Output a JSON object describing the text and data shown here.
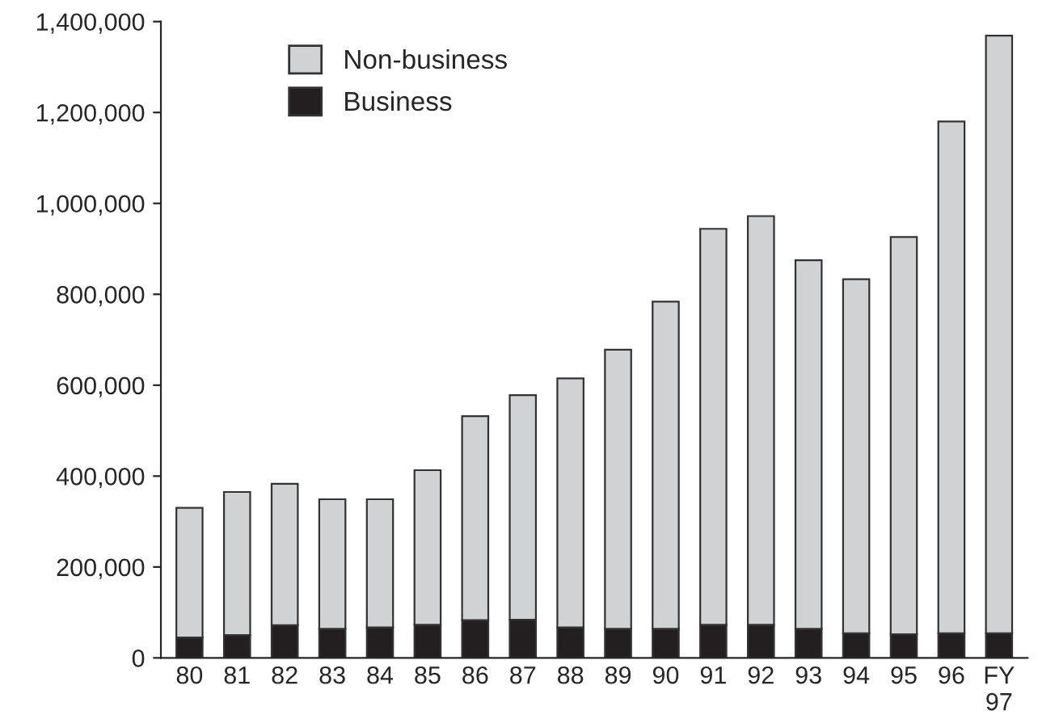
{
  "chart_data": {
    "type": "bar",
    "stacked": true,
    "categories": [
      "80",
      "81",
      "82",
      "83",
      "84",
      "85",
      "86",
      "87",
      "88",
      "89",
      "90",
      "91",
      "92",
      "93",
      "94",
      "95",
      "96",
      "FY\n97"
    ],
    "series": [
      {
        "name": "Business",
        "color": "#231f20",
        "values": [
          45000,
          50000,
          72000,
          64000,
          67000,
          73000,
          83000,
          84000,
          67000,
          64000,
          64000,
          73000,
          73000,
          64000,
          54000,
          52000,
          54000,
          54000
        ]
      },
      {
        "name": "Non-business",
        "color": "#d1d2d4",
        "values": [
          285000,
          315000,
          311000,
          285000,
          282000,
          340000,
          449000,
          494000,
          548000,
          614000,
          720000,
          871000,
          899000,
          811000,
          779000,
          874000,
          1126000,
          1315000
        ]
      }
    ],
    "ylim": [
      0,
      1400000
    ],
    "yticks": [
      {
        "value": 0,
        "label": "0"
      },
      {
        "value": 200000,
        "label": "200,000"
      },
      {
        "value": 400000,
        "label": "400,000"
      },
      {
        "value": 600000,
        "label": "600,000"
      },
      {
        "value": 800000,
        "label": "800,000"
      },
      {
        "value": 1000000,
        "label": "1,000,000"
      },
      {
        "value": 1200000,
        "label": "1,200,000"
      },
      {
        "value": 1400000,
        "label": "1,400,000"
      }
    ],
    "legend": "top left",
    "grid": false
  }
}
